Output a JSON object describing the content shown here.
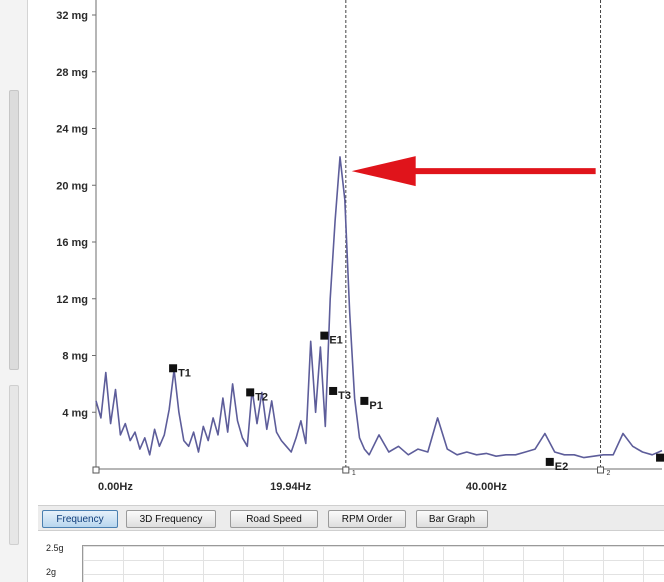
{
  "chart_data": {
    "type": "line",
    "xlabel": "",
    "ylabel": "",
    "x_ticks": [
      "0.00Hz",
      "19.94Hz",
      "40.00Hz"
    ],
    "xlim": [
      0,
      58
    ],
    "y_ticks": [
      "4 mg",
      "8 mg",
      "12 mg",
      "16 mg",
      "20 mg",
      "24 mg",
      "28 mg",
      "32 mg"
    ],
    "ylim": [
      0,
      32
    ],
    "grid": false,
    "series": [
      {
        "color": "#5d5d9a",
        "x": [
          0,
          0.5,
          1.0,
          1.5,
          2.0,
          2.5,
          3.0,
          3.5,
          4.0,
          4.5,
          5.0,
          5.5,
          6.0,
          6.5,
          7.0,
          7.5,
          8.0,
          8.5,
          9.0,
          9.5,
          10.0,
          10.5,
          11.0,
          11.5,
          12.0,
          12.5,
          13.0,
          13.5,
          14.0,
          14.5,
          15.0,
          15.5,
          16.0,
          16.5,
          17.0,
          17.5,
          18.0,
          18.5,
          19.0,
          19.5,
          20.0,
          20.5,
          21.0,
          21.5,
          22.0,
          22.5,
          23.0,
          23.5,
          24.0,
          24.5,
          25.0,
          25.5,
          26.0,
          26.5,
          27.0,
          27.5,
          28.0,
          29.0,
          30.0,
          31.0,
          32.0,
          33.0,
          34.0,
          35.0,
          36.0,
          37.0,
          38.0,
          39.0,
          40.0,
          41.0,
          42.0,
          43.0,
          44.0,
          45.0,
          46.0,
          47.0,
          48.0,
          49.0,
          50.0,
          51.0,
          52.0,
          53.0,
          54.0,
          55.0,
          56.0,
          57.0,
          58.0
        ],
        "y": [
          4.8,
          3.6,
          6.8,
          3.2,
          5.6,
          2.4,
          3.2,
          2.0,
          2.6,
          1.4,
          2.2,
          1.0,
          2.8,
          1.6,
          2.4,
          4.2,
          7.0,
          4.0,
          2.0,
          1.6,
          2.6,
          1.2,
          3.0,
          2.0,
          3.6,
          2.4,
          5.0,
          2.6,
          6.0,
          3.4,
          2.2,
          1.6,
          5.6,
          3.2,
          5.4,
          2.8,
          4.8,
          2.6,
          2.0,
          1.6,
          1.2,
          2.2,
          3.4,
          1.8,
          9.0,
          4.0,
          8.6,
          3.0,
          12.0,
          17.5,
          22.0,
          19.0,
          11.0,
          5.0,
          2.2,
          1.4,
          1.0,
          2.4,
          1.2,
          1.6,
          1.0,
          1.4,
          1.2,
          3.6,
          1.4,
          1.0,
          1.2,
          1.0,
          1.1,
          0.9,
          1.0,
          1.0,
          1.2,
          1.4,
          2.5,
          1.2,
          1.0,
          1.0,
          0.8,
          0.9,
          1.0,
          1.0,
          2.5,
          1.6,
          1.2,
          1.0,
          1.3
        ]
      }
    ],
    "markers": [
      {
        "label": "T1",
        "x": 7.9,
        "y": 7.1
      },
      {
        "label": "T2",
        "x": 15.8,
        "y": 5.4
      },
      {
        "label": "E1",
        "x": 23.4,
        "y": 9.4
      },
      {
        "label": "T3",
        "x": 24.3,
        "y": 5.5
      },
      {
        "label": "P1",
        "x": 27.5,
        "y": 4.8
      },
      {
        "label": "E2",
        "x": 46.5,
        "y": 0.5
      },
      {
        "label": "T",
        "x": 57.8,
        "y": 0.8
      }
    ],
    "cursors": [
      {
        "x": 25.6,
        "label": "1"
      },
      {
        "x": 51.7,
        "label": "2"
      }
    ],
    "annotation": {
      "type": "arrow",
      "color": "#e0141b",
      "from": {
        "x": 51.2,
        "y": 21.0
      },
      "to": {
        "x": 26.2,
        "y": 21.0
      }
    }
  },
  "tabs": [
    {
      "label": "Frequency",
      "active": true
    },
    {
      "label": "3D Frequency",
      "active": false
    },
    {
      "label": "Road Speed",
      "active": false
    },
    {
      "label": "RPM Order",
      "active": false
    },
    {
      "label": "Bar Graph",
      "active": false
    }
  ],
  "lower_chart": {
    "y_ticks": [
      "2.5g",
      "2g"
    ]
  }
}
